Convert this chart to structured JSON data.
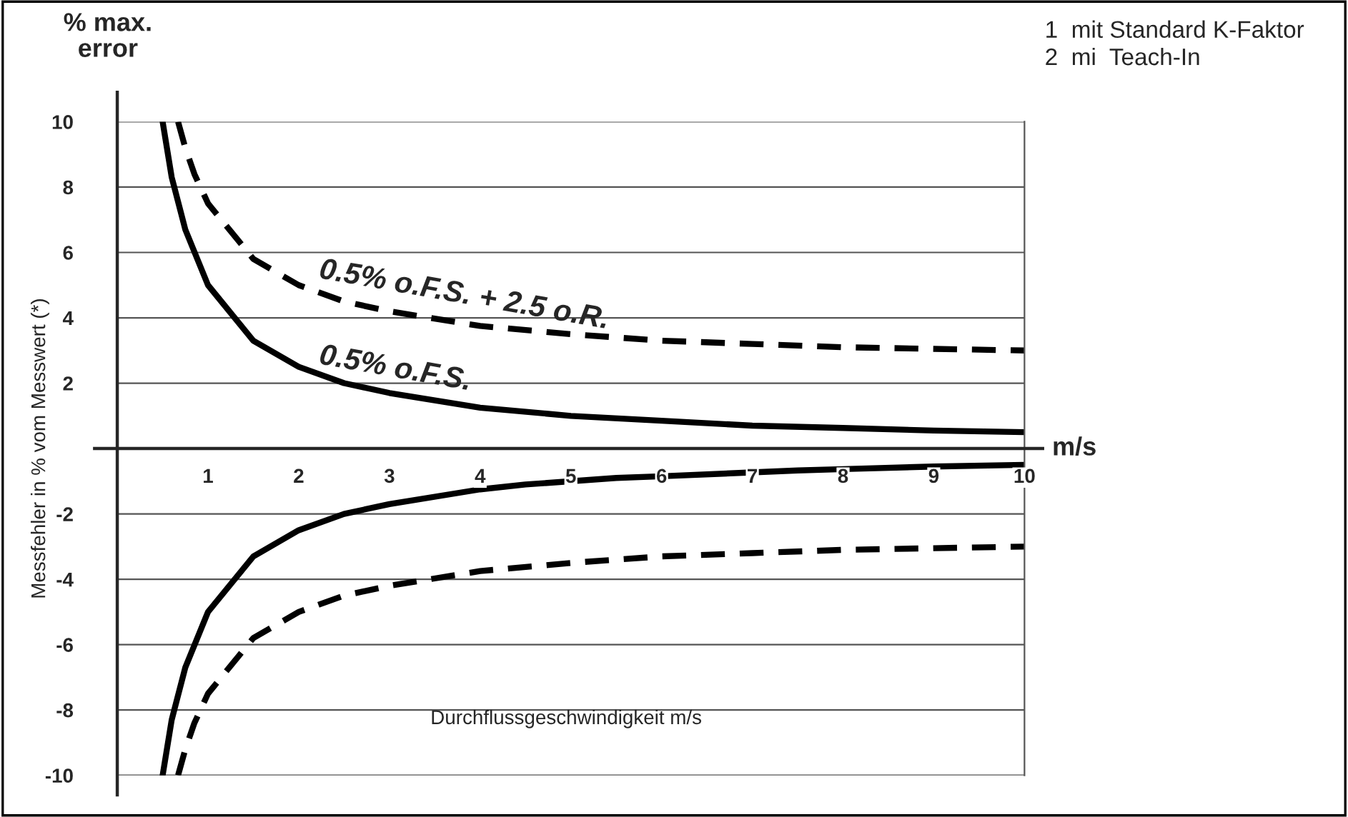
{
  "chart_data": {
    "type": "line",
    "xlabel": "m/s",
    "ylabel": "Messfehler in % vom Messwert (*)",
    "annotations": [
      "% max.\nerror",
      "1  mit Standard K-Faktor\n2  mi  Teach-In",
      "Durchflussgeschwindigkeit m/s",
      "0.5% o.F.S. + 2.5 o.R.",
      "0.5% o.F.S."
    ],
    "xlim": [
      0,
      10
    ],
    "ylim": [
      -10,
      10
    ],
    "xticks": [
      1,
      2,
      3,
      4,
      5,
      6,
      7,
      8,
      9,
      10
    ],
    "yticks": [
      -10,
      -8,
      -6,
      -4,
      -2,
      2,
      4,
      6,
      8,
      10
    ],
    "grid": "y",
    "series": [
      {
        "color": "#000000",
        "line_style": "solid",
        "x": [
          0.5,
          0.6,
          0.75,
          1,
          1.5,
          2,
          2.5,
          3,
          4,
          5,
          6,
          7,
          8,
          9,
          10
        ],
        "values": [
          10,
          8.3,
          6.7,
          5,
          3.3,
          2.5,
          2,
          1.7,
          1.25,
          1,
          0.85,
          0.7,
          0.63,
          0.55,
          0.5
        ]
      },
      {
        "color": "#000000",
        "line_style": "dashed",
        "x": [
          0.67,
          0.75,
          0.85,
          1,
          1.5,
          2,
          2.5,
          3,
          4,
          5,
          6,
          7,
          8,
          9,
          10
        ],
        "values": [
          10,
          9.2,
          8.4,
          7.5,
          5.8,
          5,
          4.5,
          4.2,
          3.75,
          3.5,
          3.3,
          3.2,
          3.1,
          3.05,
          3
        ]
      },
      {
        "color": "#000000",
        "line_style": "solid",
        "x": [
          0.5,
          0.6,
          0.75,
          1,
          1.5,
          2,
          2.5,
          3,
          4,
          4.5,
          5.5,
          6,
          7.5,
          8,
          9,
          10
        ],
        "values": [
          -10,
          -8.3,
          -6.7,
          -5,
          -3.3,
          -2.5,
          -2,
          -1.7,
          -1.25,
          -1.1,
          -0.9,
          -0.85,
          -0.67,
          -0.63,
          -0.55,
          -0.5
        ]
      },
      {
        "color": "#000000",
        "line_style": "dashed",
        "x": [
          0.67,
          0.75,
          0.85,
          1,
          1.5,
          2,
          2.5,
          3,
          4,
          5,
          6,
          7,
          8,
          9,
          10
        ],
        "values": [
          -10,
          -9.2,
          -8.4,
          -7.5,
          -5.8,
          -5,
          -4.5,
          -4.2,
          -3.75,
          -3.5,
          -3.3,
          -3.2,
          -3.1,
          -3.05,
          -3
        ]
      }
    ]
  }
}
